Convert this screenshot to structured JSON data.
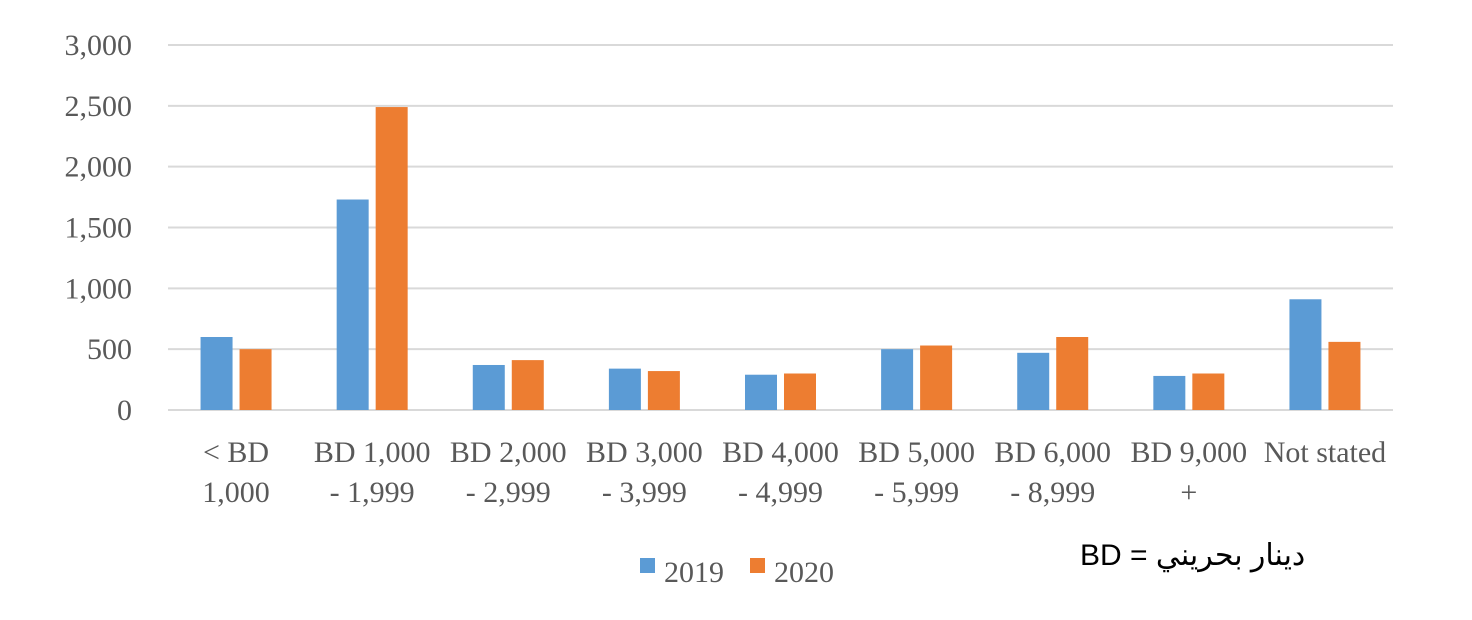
{
  "chart_data": {
    "type": "bar",
    "categories": [
      [
        "< BD",
        "1,000"
      ],
      [
        "BD 1,000",
        "- 1,999"
      ],
      [
        "BD 2,000",
        "- 2,999"
      ],
      [
        "BD 3,000",
        "- 3,999"
      ],
      [
        "BD 4,000",
        "- 4,999"
      ],
      [
        "BD 5,000",
        "- 5,999"
      ],
      [
        "BD 6,000",
        "- 8,999"
      ],
      [
        "BD 9,000",
        "+"
      ],
      [
        "Not stated"
      ]
    ],
    "series": [
      {
        "name": "2019",
        "color": "#5B9BD5",
        "values": [
          600,
          1730,
          370,
          340,
          290,
          500,
          470,
          280,
          910
        ]
      },
      {
        "name": "2020",
        "color": "#ED7D31",
        "values": [
          500,
          2490,
          410,
          320,
          300,
          530,
          600,
          300,
          560
        ]
      }
    ],
    "ylim": [
      0,
      3000
    ],
    "yticks": [
      0,
      500,
      1000,
      1500,
      2000,
      2500,
      3000
    ],
    "ytick_labels": [
      "0",
      "500",
      "1,000",
      "1,500",
      "2,000",
      "2,500",
      "3,000"
    ],
    "grid": true,
    "legend_position": "bottom",
    "title": "",
    "xlabel": "",
    "ylabel": ""
  },
  "note": "BD = دينار بحريني"
}
